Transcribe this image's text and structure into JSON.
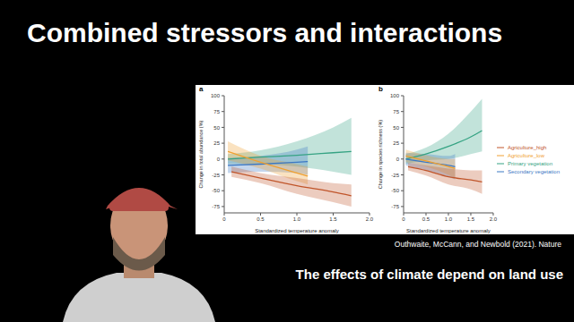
{
  "title": "Combined stressors and interactions",
  "source": "Outhwaite, McCann, and Newbold (2021). Nature",
  "caption": "The effects of climate depend on land use",
  "chart_data": [
    {
      "type": "line",
      "panel_label": "a",
      "x_label": "Standardized temperature anomaly",
      "y_label": "Change in total abundance (%)",
      "xlim": [
        0,
        2
      ],
      "xticks": [
        0,
        0.5,
        {
          "value": 1,
          "label": "1.0"
        },
        1.5,
        {
          "value": 2,
          "label": "2.0"
        }
      ],
      "ylim": [
        -85,
        100
      ],
      "yticks": [
        -75,
        -50,
        -25,
        0,
        25,
        50,
        75,
        100
      ],
      "grid": false,
      "series": [
        {
          "name": "Primary vegetation",
          "color": "#35a383",
          "x": [
            0.05,
            0.5,
            1.0,
            1.5,
            1.75
          ],
          "values": [
            0,
            3,
            6,
            10,
            12
          ],
          "lower": [
            -8,
            -8,
            -12,
            -20,
            -25
          ],
          "upper": [
            8,
            14,
            28,
            50,
            65
          ]
        },
        {
          "name": "Secondary vegetation",
          "color": "#3b78c4",
          "x": [
            0.05,
            0.5,
            1.0,
            1.15
          ],
          "values": [
            -10,
            -8,
            -5,
            -4
          ],
          "lower": [
            -22,
            -20,
            -22,
            -25
          ],
          "upper": [
            2,
            5,
            15,
            20
          ]
        },
        {
          "name": "Agriculture_low",
          "color": "#f0a030",
          "x": [
            0.05,
            0.5,
            1.0,
            1.15
          ],
          "values": [
            12,
            -5,
            -22,
            -27
          ],
          "lower": [
            -2,
            -15,
            -35,
            -40
          ],
          "upper": [
            28,
            5,
            -8,
            -12
          ]
        },
        {
          "name": "Agriculture_high",
          "color": "#c0552a",
          "x": [
            0.1,
            0.5,
            1.0,
            1.5,
            1.75
          ],
          "values": [
            -20,
            -30,
            -42,
            -52,
            -58
          ],
          "lower": [
            -28,
            -38,
            -55,
            -68,
            -75
          ],
          "upper": [
            -12,
            -22,
            -30,
            -38,
            -40
          ]
        }
      ]
    },
    {
      "type": "line",
      "panel_label": "b",
      "x_label": "Standardized temperature anomaly",
      "y_label": "Change in species richness (%)",
      "xlim": [
        0,
        2
      ],
      "xticks": [
        0,
        0.5,
        {
          "value": 1,
          "label": "1.0"
        },
        1.5,
        {
          "value": 2,
          "label": "2.0"
        }
      ],
      "ylim": [
        -85,
        100
      ],
      "yticks": [
        -75,
        -50,
        -25,
        0,
        25,
        50,
        75,
        100
      ],
      "grid": false,
      "legend": "right",
      "series": [
        {
          "name": "Primary vegetation",
          "color": "#35a383",
          "x": [
            0.05,
            0.5,
            1.0,
            1.5,
            1.75
          ],
          "values": [
            0,
            8,
            20,
            35,
            45
          ],
          "lower": [
            -8,
            -2,
            0,
            8,
            12
          ],
          "upper": [
            8,
            18,
            40,
            75,
            95
          ]
        },
        {
          "name": "Secondary vegetation",
          "color": "#3b78c4",
          "x": [
            0.05,
            0.5,
            1.0,
            1.15
          ],
          "values": [
            0,
            -5,
            -10,
            -12
          ],
          "lower": [
            -10,
            -18,
            -28,
            -32
          ],
          "upper": [
            10,
            8,
            5,
            8
          ]
        },
        {
          "name": "Agriculture_low",
          "color": "#f0a030",
          "x": [
            0.05,
            0.5,
            1.0,
            1.15
          ],
          "values": [
            5,
            -3,
            -12,
            -15
          ],
          "lower": [
            -5,
            -12,
            -25,
            -30
          ],
          "upper": [
            15,
            6,
            0,
            0
          ]
        },
        {
          "name": "Agriculture_high",
          "color": "#c0552a",
          "x": [
            0.1,
            0.5,
            1.0,
            1.5,
            1.75
          ],
          "values": [
            -12,
            -18,
            -28,
            -33,
            -36
          ],
          "lower": [
            -18,
            -26,
            -40,
            -48,
            -55
          ],
          "upper": [
            -6,
            -10,
            -15,
            -18,
            -18
          ]
        }
      ]
    }
  ]
}
